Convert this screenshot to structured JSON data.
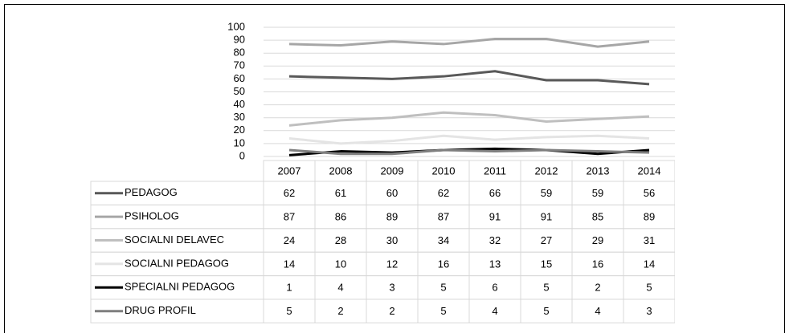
{
  "chart_data": {
    "type": "line",
    "categories": [
      "2007",
      "2008",
      "2009",
      "2010",
      "2011",
      "2012",
      "2013",
      "2014"
    ],
    "series": [
      {
        "name": "PEDAGOG",
        "color": "#595959",
        "values": [
          62,
          61,
          60,
          62,
          66,
          59,
          59,
          56
        ]
      },
      {
        "name": "PSIHOLOG",
        "color": "#a6a6a6",
        "values": [
          87,
          86,
          89,
          87,
          91,
          91,
          85,
          89
        ]
      },
      {
        "name": "SOCIALNI DELAVEC",
        "color": "#bfbfbf",
        "values": [
          24,
          28,
          30,
          34,
          32,
          27,
          29,
          31
        ]
      },
      {
        "name": "SOCIALNI PEDAGOG",
        "color": "#e4e4e4",
        "values": [
          14,
          10,
          12,
          16,
          13,
          15,
          16,
          14
        ]
      },
      {
        "name": "SPECIALNI PEDAGOG",
        "color": "#000000",
        "values": [
          1,
          4,
          3,
          5,
          6,
          5,
          2,
          5
        ]
      },
      {
        "name": "DRUG PROFIL",
        "color": "#7f7f7f",
        "values": [
          5,
          2,
          2,
          5,
          4,
          5,
          4,
          3
        ]
      }
    ],
    "ylim": [
      0,
      100
    ],
    "yticks": [
      0,
      10,
      20,
      30,
      40,
      50,
      60,
      70,
      80,
      90,
      100
    ],
    "grid": true
  }
}
